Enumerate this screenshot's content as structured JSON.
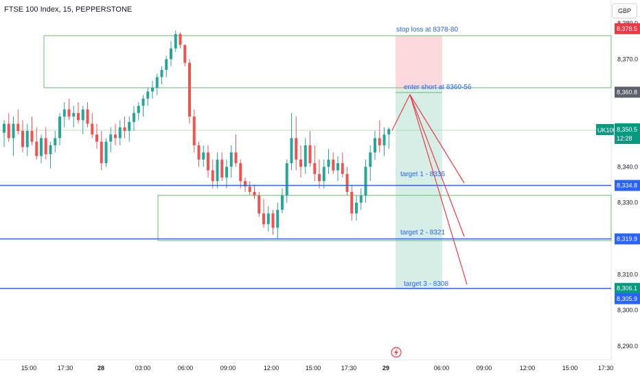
{
  "header": {
    "title": "FTSE 100 Index, 15, PEPPERSTONE"
  },
  "currency": "GBP",
  "chart_data": {
    "type": "candlestick",
    "instrument": "UK100",
    "price": {
      "last": "8,350.5",
      "countdown": "12:28"
    },
    "yaxis": {
      "ticks": [
        "8,380.0",
        "8,370.0",
        "8,360.0",
        "8,350.0",
        "8,340.0",
        "8,330.0",
        "8,320.0",
        "8,310.0",
        "8,300.0",
        "8,290.0"
      ],
      "values": [
        8380,
        8370,
        8360,
        8350,
        8340,
        8330,
        8320,
        8310,
        8300,
        8290
      ]
    },
    "xaxis": {
      "ticks": [
        "15:00",
        "17:30",
        "28",
        "03:00",
        "06:00",
        "09:00",
        "12:00",
        "15:00",
        "17:30",
        "29",
        "06:00",
        "09:00",
        "12:00",
        "15:00",
        "17:30"
      ],
      "bold": [
        false,
        false,
        true,
        false,
        false,
        false,
        false,
        false,
        false,
        true,
        false,
        false,
        false,
        false,
        false
      ]
    },
    "candles": [
      [
        8349.5,
        8353,
        8345.5,
        8352
      ],
      [
        8352,
        8355,
        8347,
        8348
      ],
      [
        8348,
        8354,
        8343,
        8352
      ],
      [
        8352,
        8356,
        8349,
        8350
      ],
      [
        8350,
        8353,
        8344,
        8345.5
      ],
      [
        8345.5,
        8352,
        8343,
        8350
      ],
      [
        8350,
        8354,
        8346,
        8347
      ],
      [
        8347,
        8351,
        8342,
        8343
      ],
      [
        8343,
        8349,
        8341,
        8348
      ],
      [
        8348,
        8351,
        8342,
        8343.5
      ],
      [
        8343.5,
        8347,
        8339.5,
        8346
      ],
      [
        8346,
        8350,
        8344,
        8348
      ],
      [
        8348,
        8355,
        8346,
        8354
      ],
      [
        8354,
        8358,
        8351,
        8356
      ],
      [
        8356,
        8359,
        8353,
        8354
      ],
      [
        8354,
        8357,
        8351,
        8355
      ],
      [
        8355,
        8358,
        8352,
        8353
      ],
      [
        8353,
        8357,
        8349,
        8356
      ],
      [
        8356,
        8358,
        8351,
        8352
      ],
      [
        8352,
        8355,
        8348,
        8349
      ],
      [
        8349,
        8352,
        8345,
        8347
      ],
      [
        8347,
        8350,
        8339,
        8341
      ],
      [
        8341,
        8348,
        8340,
        8347
      ],
      [
        8347,
        8351,
        8344,
        8349
      ],
      [
        8349,
        8352,
        8346,
        8348
      ],
      [
        8348,
        8353,
        8346,
        8351
      ],
      [
        8351,
        8354,
        8348,
        8350
      ],
      [
        8350,
        8354,
        8347,
        8352.5
      ],
      [
        8352.5,
        8357,
        8350,
        8355
      ],
      [
        8355,
        8358,
        8353,
        8357
      ],
      [
        8357,
        8360,
        8354,
        8359
      ],
      [
        8359,
        8362,
        8357,
        8361
      ],
      [
        8361,
        8364,
        8359,
        8362
      ],
      [
        8362,
        8366,
        8360,
        8365
      ],
      [
        8365,
        8368,
        8363,
        8367
      ],
      [
        8367,
        8371,
        8365,
        8370
      ],
      [
        8370,
        8375,
        8368,
        8373
      ],
      [
        8373,
        8378,
        8372,
        8377
      ],
      [
        8377,
        8377.5,
        8373,
        8374
      ],
      [
        8374,
        8374,
        8368,
        8369
      ],
      [
        8369,
        8370,
        8352,
        8354
      ],
      [
        8354,
        8356,
        8344,
        8346
      ],
      [
        8346,
        8347,
        8340,
        8342
      ],
      [
        8342,
        8346,
        8340,
        8344
      ],
      [
        8344,
        8346,
        8337,
        8339
      ],
      [
        8339,
        8342,
        8334,
        8336
      ],
      [
        8336,
        8344,
        8334,
        8342
      ],
      [
        8342,
        8344,
        8336,
        8337
      ],
      [
        8337,
        8342,
        8334,
        8340
      ],
      [
        8340,
        8346,
        8337,
        8344
      ],
      [
        8344,
        8349,
        8340,
        8341
      ],
      [
        8341,
        8342,
        8334,
        8336
      ],
      [
        8336,
        8337,
        8333,
        8334.5
      ],
      [
        8334.5,
        8336,
        8332,
        8333
      ],
      [
        8333,
        8335,
        8331,
        8332
      ],
      [
        8332,
        8333,
        8326,
        8327
      ],
      [
        8327,
        8331,
        8323,
        8324
      ],
      [
        8324,
        8329,
        8322,
        8327
      ],
      [
        8327,
        8328,
        8321,
        8323
      ],
      [
        8323,
        8330,
        8320,
        8328
      ],
      [
        8328,
        8334,
        8327,
        8332
      ],
      [
        8332,
        8342,
        8330,
        8341
      ],
      [
        8341,
        8355,
        8339,
        8348
      ],
      [
        8348,
        8354,
        8339,
        8342
      ],
      [
        8342,
        8346,
        8337,
        8340
      ],
      [
        8340,
        8348,
        8338,
        8346
      ],
      [
        8346,
        8350,
        8340,
        8341
      ],
      [
        8341,
        8346,
        8336,
        8338
      ],
      [
        8338,
        8342,
        8334,
        8336
      ],
      [
        8336,
        8342,
        8334,
        8340
      ],
      [
        8340,
        8345,
        8338,
        8342
      ],
      [
        8342,
        8344,
        8338,
        8339
      ],
      [
        8339,
        8343,
        8336,
        8341
      ],
      [
        8341,
        8344,
        8337,
        8338
      ],
      [
        8338,
        8340,
        8332,
        8333
      ],
      [
        8333,
        8335,
        8325,
        8327
      ],
      [
        8327,
        8332,
        8325,
        8330
      ],
      [
        8330,
        8334,
        8328,
        8332
      ],
      [
        8332,
        8342,
        8330,
        8340
      ],
      [
        8340,
        8346,
        8336,
        8344
      ],
      [
        8344,
        8350,
        8342,
        8348
      ],
      [
        8348,
        8353,
        8344,
        8346
      ],
      [
        8346,
        8351,
        8343,
        8349
      ],
      [
        8349,
        8351,
        8345,
        8350.5
      ]
    ],
    "lines": [
      {
        "price": 8334.8,
        "label": "8,334.8"
      },
      {
        "price": 8319.9,
        "label": "8,319.9"
      },
      {
        "price": 8306.1,
        "label": "8,306.1"
      }
    ],
    "extra_labels": [
      {
        "price": 8378.5,
        "label": "8,378.5",
        "color": "#f23645"
      },
      {
        "price": 8360.8,
        "label": "8,360.8",
        "color": "#5d606b"
      },
      {
        "price": 8305.9,
        "label": "8,305.9",
        "color": "#2962ff"
      }
    ],
    "annotations": {
      "stop_loss": "stop loss at 8378-80",
      "entry": "enter short at 8360-56",
      "target1": "target 1 - 8336",
      "target2": "target 2 - 8321",
      "target3": "target 3 - 8308"
    },
    "colors": {
      "up": "#26a69a",
      "down": "#ef5350",
      "line": "#2962ff",
      "box": "#4caf50",
      "stop_zone": "#f8d7da",
      "target_zone": "#d4ede6"
    }
  }
}
